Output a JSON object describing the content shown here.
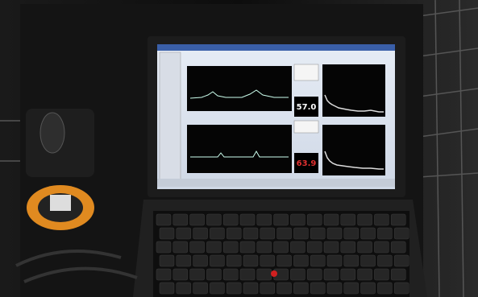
{
  "screen": {
    "readouts": [
      "57.0",
      "63.9"
    ]
  }
}
